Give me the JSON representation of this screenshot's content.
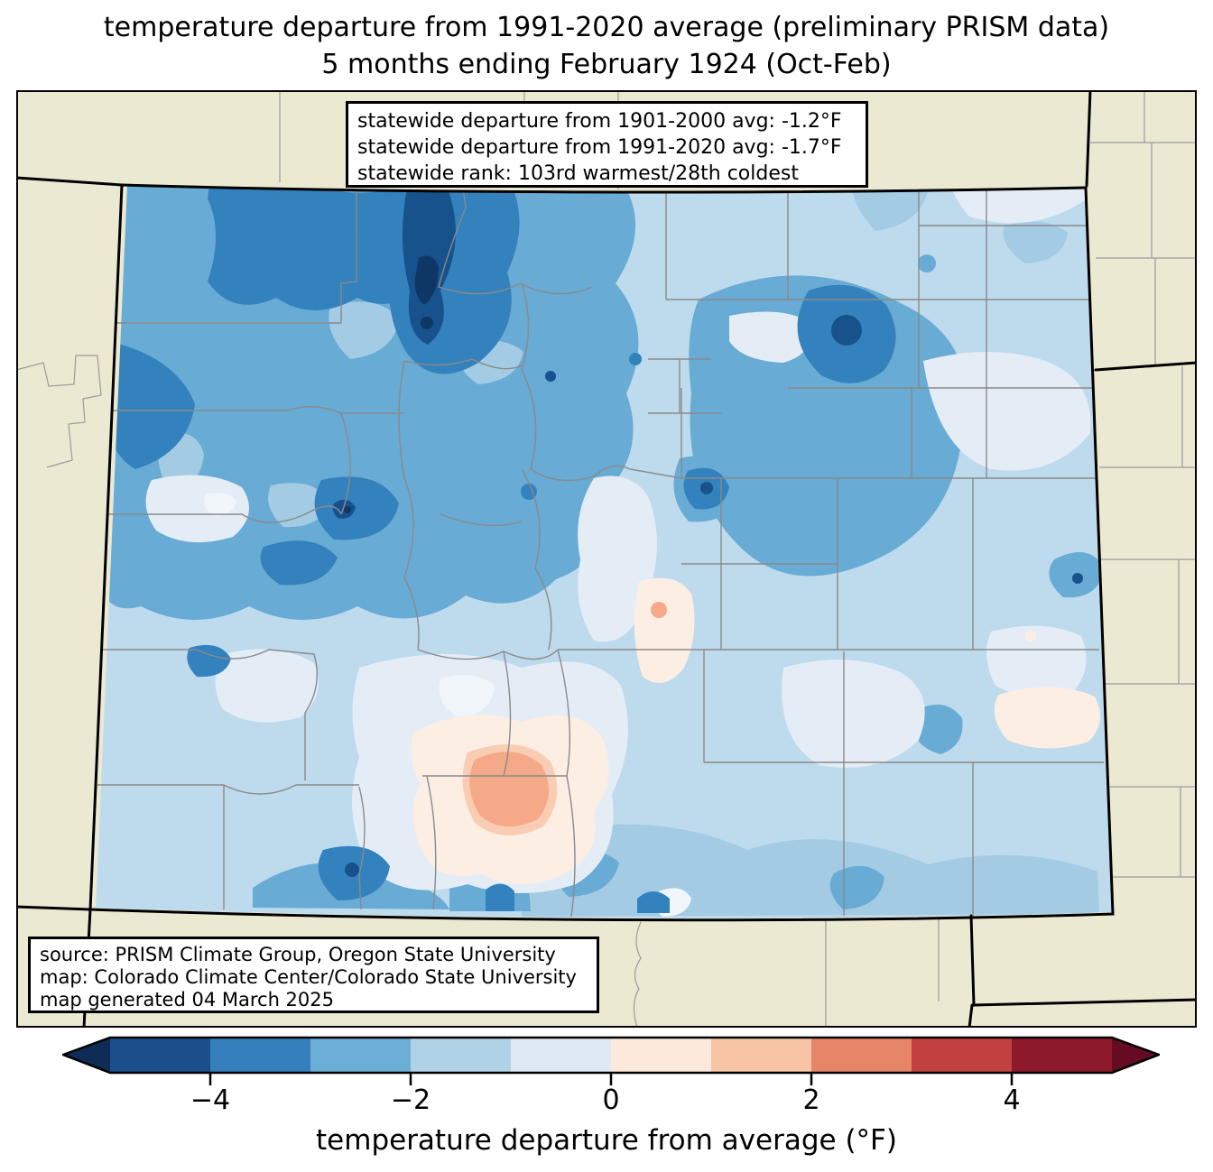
{
  "title": {
    "line1": "temperature departure from 1991-2020 average (preliminary PRISM data)",
    "line2": "5 months ending February 1924 (Oct-Feb)"
  },
  "stats_box": {
    "line1": "statewide departure from 1901-2000 avg: -1.2°F",
    "line2": "statewide departure from 1991-2020 avg: -1.7°F",
    "line3": "statewide rank: 103rd warmest/28th coldest"
  },
  "statistics": {
    "departure_from_1901_2000_avg_F": -1.2,
    "departure_from_1991_2020_avg_F": -1.7,
    "rank_warmest": "103rd",
    "rank_coldest": "28th"
  },
  "source_box": {
    "line1": "source: PRISM Climate Group, Oregon State University",
    "line2": "map: Colorado Climate Center/Colorado State University",
    "line3": "map generated 04 March 2025"
  },
  "colorbar": {
    "label": "temperature departure from average (°F)",
    "unit": "°F",
    "range": [
      -5,
      5
    ],
    "ticks": [
      {
        "value": -4,
        "label": "−4"
      },
      {
        "value": -2,
        "label": "−2"
      },
      {
        "value": 0,
        "label": "0"
      },
      {
        "value": 2,
        "label": "2"
      },
      {
        "value": 4,
        "label": "4"
      }
    ],
    "arrow_low_color": "#0d2d56",
    "arrow_high_color": "#650c22",
    "segments": [
      {
        "from": -5,
        "to": -4,
        "color": "#1c4e8c"
      },
      {
        "from": -4,
        "to": -3,
        "color": "#3580bc"
      },
      {
        "from": -3,
        "to": -2,
        "color": "#6caed6"
      },
      {
        "from": -2,
        "to": -1,
        "color": "#afd2e7"
      },
      {
        "from": -1,
        "to": 0,
        "color": "#dfe9f3"
      },
      {
        "from": 0,
        "to": 1,
        "color": "#fce9dc"
      },
      {
        "from": 1,
        "to": 2,
        "color": "#f7c5a6"
      },
      {
        "from": 2,
        "to": 3,
        "color": "#e78666"
      },
      {
        "from": 3,
        "to": 4,
        "color": "#c2403d"
      },
      {
        "from": 4,
        "to": 5,
        "color": "#8c1a2c"
      }
    ]
  },
  "map": {
    "region": "Colorado",
    "background_color": "#ece9d3",
    "line_colors": {
      "county": "#8a8a8a",
      "county_outside": "#9a9a9a",
      "state_border": "#000000",
      "frame": "#000000"
    },
    "palette": {
      "base": "#bedaed",
      "lmed": "#a3cbe4",
      "med": "#68abd4",
      "mdark": "#3381bd",
      "navy": "#17528c",
      "darkest": "#0e3766",
      "vlight": "#e4edf6",
      "white": "#f1f6fa",
      "pinkpale": "#fdeee4",
      "pinkmid": "#f9cdb4",
      "salmon": "#f5a988",
      "beige": "#ece9d3"
    }
  }
}
